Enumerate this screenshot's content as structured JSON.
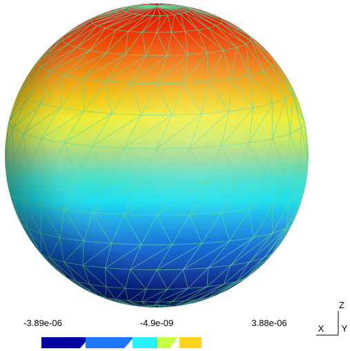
{
  "colorbar": {
    "labels": {
      "min": "-3.89e-06",
      "mid": "-4.9e-09",
      "max": "3.88e-06"
    },
    "colors": [
      "#0000a0",
      "#1e78ff",
      "#28f0ff",
      "#c8ff46",
      "#ffd21e"
    ]
  },
  "axes": {
    "z": "Z",
    "x": "X",
    "y": "Y"
  },
  "render": {
    "mesh_edge_color": "#5fd79a",
    "gradient_stops": [
      {
        "offset": 0.0,
        "color": "#e60000"
      },
      {
        "offset": 0.1,
        "color": "#ee3300"
      },
      {
        "offset": 0.2,
        "color": "#f07a10"
      },
      {
        "offset": 0.3,
        "color": "#f0c010"
      },
      {
        "offset": 0.38,
        "color": "#eeee30"
      },
      {
        "offset": 0.45,
        "color": "#c8e860"
      },
      {
        "offset": 0.5,
        "color": "#9ed890"
      },
      {
        "offset": 0.58,
        "color": "#40e0d0"
      },
      {
        "offset": 0.65,
        "color": "#18e0f0"
      },
      {
        "offset": 0.72,
        "color": "#20a8e8"
      },
      {
        "offset": 0.82,
        "color": "#1060d0"
      },
      {
        "offset": 0.92,
        "color": "#0a2a9a"
      },
      {
        "offset": 1.0,
        "color": "#001070"
      }
    ]
  }
}
